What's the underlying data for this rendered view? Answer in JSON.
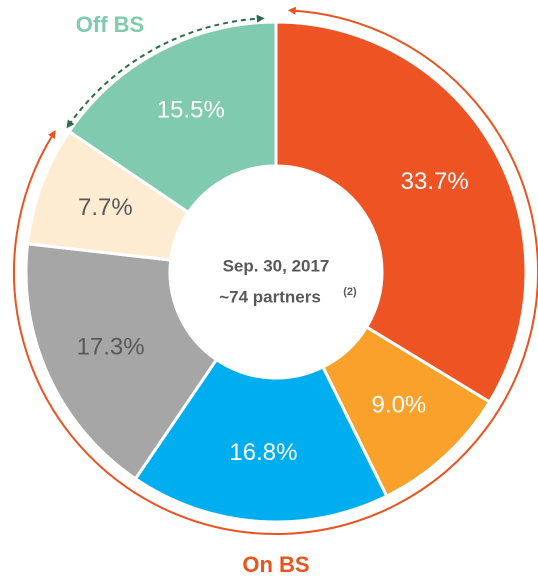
{
  "chart_data": {
    "type": "pie",
    "donut": true,
    "values": [
      33.7,
      9.0,
      16.8,
      17.3,
      7.7,
      15.5
    ],
    "value_labels": [
      "33.7%",
      "9.0%",
      "16.8%",
      "17.3%",
      "7.7%",
      "15.5%"
    ],
    "colors": [
      "#ED5323",
      "#F9A12B",
      "#00AEEF",
      "#A6A6A6",
      "#FDEBD2",
      "#80CBAF"
    ],
    "label_colors": [
      "#ffffff",
      "#ffffff",
      "#ffffff",
      "#595959",
      "#595959",
      "#ffffff"
    ],
    "center_text": [
      "Sep. 30, 2017",
      "~74 partners"
    ],
    "center_superscript": "(2)",
    "annotations": [
      "Off BS",
      "On BS"
    ],
    "annotation_colors": [
      "#80CBAF",
      "#E9541F"
    ]
  }
}
